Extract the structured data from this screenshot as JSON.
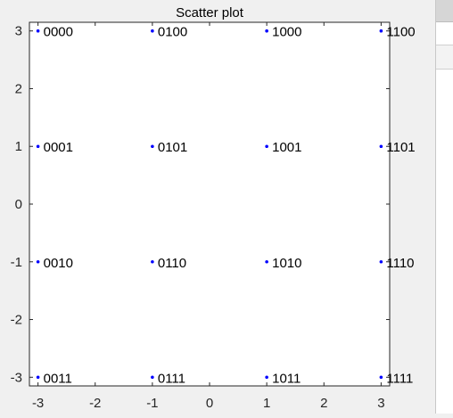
{
  "chart_data": {
    "type": "scatter",
    "title": "Scatter plot",
    "xlabel": "",
    "ylabel": "",
    "xlim": [
      -3.15,
      3.15
    ],
    "ylim": [
      -3.15,
      3.15
    ],
    "xticks": [
      "-3",
      "-2",
      "-1",
      "0",
      "1",
      "2",
      "3"
    ],
    "yticks": [
      "3",
      "2",
      "1",
      "0",
      "-1",
      "-2",
      "-3"
    ],
    "grid": false,
    "marker_color": "#0000ff",
    "points": [
      {
        "x": -3,
        "y": 3,
        "label": "0000"
      },
      {
        "x": -1,
        "y": 3,
        "label": "0100"
      },
      {
        "x": 1,
        "y": 3,
        "label": "1000"
      },
      {
        "x": 3,
        "y": 3,
        "label": "1100"
      },
      {
        "x": -3,
        "y": 1,
        "label": "0001"
      },
      {
        "x": -1,
        "y": 1,
        "label": "0101"
      },
      {
        "x": 1,
        "y": 1,
        "label": "1001"
      },
      {
        "x": 3,
        "y": 1,
        "label": "1101"
      },
      {
        "x": -3,
        "y": -1,
        "label": "0010"
      },
      {
        "x": -1,
        "y": -1,
        "label": "0110"
      },
      {
        "x": 1,
        "y": -1,
        "label": "1010"
      },
      {
        "x": 3,
        "y": -1,
        "label": "1110"
      },
      {
        "x": -3,
        "y": -3,
        "label": "0011"
      },
      {
        "x": -1,
        "y": -3,
        "label": "0111"
      },
      {
        "x": 1,
        "y": -3,
        "label": "1011"
      },
      {
        "x": 3,
        "y": -3,
        "label": "1111"
      }
    ]
  }
}
